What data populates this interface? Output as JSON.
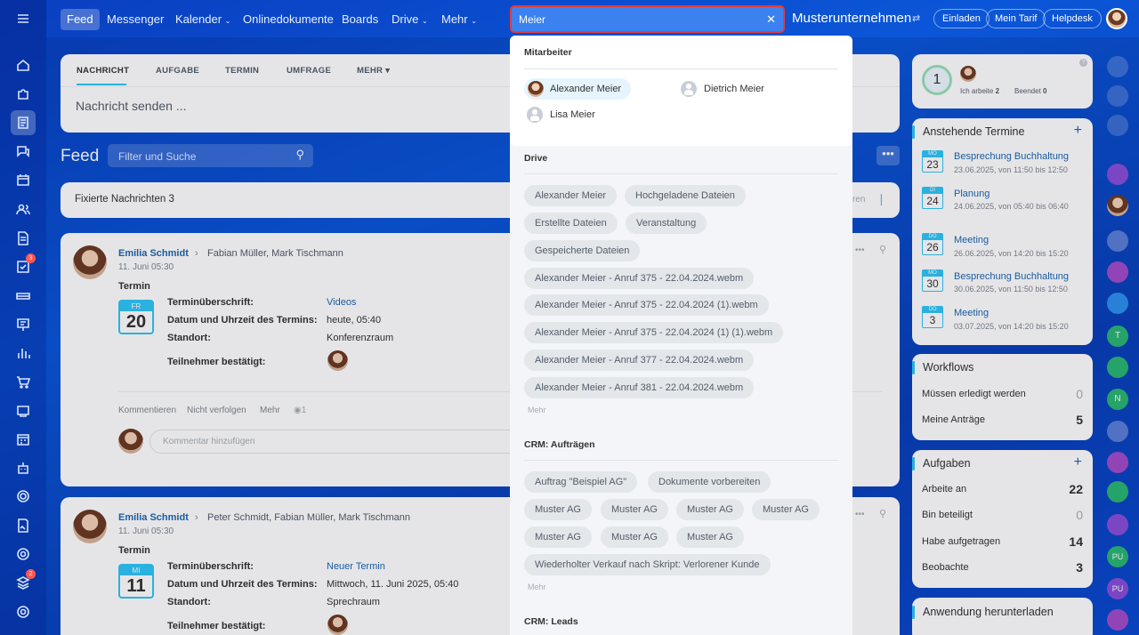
{
  "topnav": {
    "items": [
      "Feed",
      "Messenger",
      "Kalender",
      "Onlinedokumente",
      "Boards",
      "Drive",
      "Mehr"
    ],
    "company": "Musterunternehmen",
    "invite": "Einladen",
    "tariff": "Mein Tarif",
    "helpdesk": "Helpdesk"
  },
  "search": {
    "value": "Meier"
  },
  "composer": {
    "tabs": [
      "NACHRICHT",
      "AUFGABE",
      "TERMIN",
      "UMFRAGE",
      "MEHR"
    ],
    "placeholder": "Nachricht senden ..."
  },
  "feed": {
    "title": "Feed",
    "filter_placeholder": "Filter und Suche",
    "pinned": "Fixierte Nachrichten",
    "pinned_count": "3",
    "pinned_hint": "ren"
  },
  "posts": [
    {
      "author": "Emilia Schmidt",
      "recipients": "Fabian Müller, Mark Tischmann",
      "time": "11. Juni 05:30",
      "type": "Termin",
      "cal_day": "FR",
      "cal_num": "20",
      "lbl_title": "Terminüberschrift:",
      "val_title": "Videos",
      "lbl_date": "Datum und Uhrzeit des Termins:",
      "val_date": "heute, 05:40",
      "lbl_place": "Standort:",
      "val_place": "Konferenzraum",
      "lbl_part": "Teilnehmer bestätigt:",
      "actions": [
        "Kommentieren",
        "Nicht verfolgen",
        "Mehr"
      ],
      "views": "1",
      "comment_placeholder": "Kommentar hinzufügen"
    },
    {
      "author": "Emilia Schmidt",
      "recipients": "Peter Schmidt, Fabian Müller, Mark Tischmann",
      "time": "11. Juni 05:30",
      "type": "Termin",
      "cal_day": "MI",
      "cal_num": "11",
      "lbl_title": "Terminüberschrift:",
      "val_title": "Neuer Termin",
      "lbl_date": "Datum und Uhrzeit des Termins:",
      "val_date": "Mittwoch, 11. Juni 2025, 05:40",
      "lbl_place": "Standort:",
      "val_place": "Sprechraum",
      "lbl_part": "Teilnehmer bestätigt:"
    }
  ],
  "dropdown": {
    "employees_title": "Mitarbeiter",
    "employees": [
      "Alexander Meier",
      "Dietrich Meier",
      "Lisa Meier"
    ],
    "drive_title": "Drive",
    "drive": [
      "Alexander Meier",
      "Hochgeladene Dateien",
      "Erstellte Dateien",
      "Veranstaltung",
      "Gespeicherte Dateien",
      "Alexander Meier - Anruf 375 - 22.04.2024.webm",
      "Alexander Meier - Anruf 375 - 22.04.2024 (1).webm",
      "Alexander Meier - Anruf 375 - 22.04.2024 (1) (1).webm",
      "Alexander Meier - Anruf 377 - 22.04.2024.webm",
      "Alexander Meier - Anruf 381 - 22.04.2024.webm"
    ],
    "more": "Mehr",
    "crm_title": "CRM: Aufträgen",
    "crm": [
      "Auftrag \"Beispiel AG\"",
      "Dokumente vorbereiten",
      "Muster AG",
      "Muster AG",
      "Muster AG",
      "Muster AG",
      "Muster AG",
      "Muster AG",
      "Muster AG",
      "Wiederholter Verkauf nach Skript: Verlorener Kunde"
    ],
    "leads_title": "CRM: Leads"
  },
  "worktime": {
    "count": "1",
    "working_label": "Ich arbeite",
    "working": "2",
    "done_label": "Beendet",
    "done": "0"
  },
  "events": {
    "title": "Anstehende Termine",
    "items": [
      {
        "day": "MO",
        "num": "23",
        "title": "Besprechung Buchhaltung",
        "time": "23.06.2025, von 11:50 bis 12:50"
      },
      {
        "day": "DI",
        "num": "24",
        "title": "Planung",
        "time": "24.06.2025, von 05:40 bis 06:40"
      },
      {
        "day": "DO",
        "num": "26",
        "title": "Meeting",
        "time": "26.06.2025, von 14:20 bis 15:20"
      },
      {
        "day": "MO",
        "num": "30",
        "title": "Besprechung Buchhaltung",
        "time": "30.06.2025, von 11:50 bis 12:50"
      },
      {
        "day": "DO",
        "num": "3",
        "title": "Meeting",
        "time": "03.07.2025, von 14:20 bis 15:20"
      }
    ]
  },
  "workflows": {
    "title": "Workflows",
    "rows": [
      {
        "label": "Müssen erledigt werden",
        "value": "0"
      },
      {
        "label": "Meine Anträge",
        "value": "5"
      }
    ]
  },
  "tasks": {
    "title": "Aufgaben",
    "rows": [
      {
        "label": "Arbeite an",
        "value": "22"
      },
      {
        "label": "Bin beteiligt",
        "value": "0"
      },
      {
        "label": "Habe aufgetragen",
        "value": "14"
      },
      {
        "label": "Beobachte",
        "value": "3"
      }
    ]
  },
  "app": {
    "title": "Anwendung herunterladen"
  },
  "badges": {
    "tasks": "3",
    "feed": "2"
  },
  "rightbar": [
    "T",
    "N",
    "PU",
    "PU"
  ]
}
